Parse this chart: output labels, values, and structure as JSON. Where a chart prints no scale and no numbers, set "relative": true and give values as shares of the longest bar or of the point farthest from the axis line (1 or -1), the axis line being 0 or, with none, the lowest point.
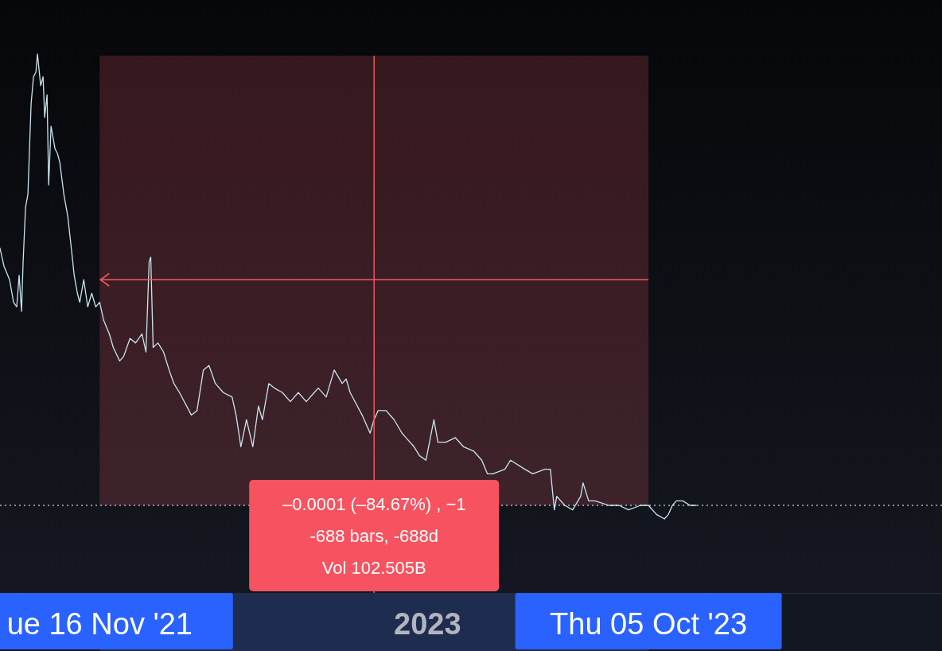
{
  "chart_data": {
    "type": "line",
    "relative": true,
    "tick_labels": "x",
    "x": [
      "2021-07-14",
      "2021-07-19",
      "2021-07-26",
      "2021-07-31",
      "2021-08-04",
      "2021-08-07",
      "2021-08-10",
      "2021-08-12",
      "2021-08-15",
      "2021-08-18",
      "2021-08-22",
      "2021-08-25",
      "2021-08-28",
      "2021-08-30",
      "2021-09-03",
      "2021-09-06",
      "2021-09-08",
      "2021-09-11",
      "2021-09-13",
      "2021-09-16",
      "2021-09-21",
      "2021-09-24",
      "2021-09-27",
      "2021-10-02",
      "2021-10-07",
      "2021-10-12",
      "2021-10-15",
      "2021-10-19",
      "2021-10-22",
      "2021-10-27",
      "2021-11-01",
      "2021-11-06",
      "2021-11-11",
      "2021-11-16",
      "2021-11-21",
      "2021-11-28",
      "2021-12-03",
      "2021-12-11",
      "2021-12-16",
      "2021-12-24",
      "2021-12-31",
      "2022-01-08",
      "2022-01-13",
      "2022-01-17",
      "2022-01-19",
      "2022-01-22",
      "2022-01-28",
      "2022-02-04",
      "2022-02-11",
      "2022-02-17",
      "2022-02-24",
      "2022-03-11",
      "2022-03-18",
      "2022-03-26",
      "2022-04-02",
      "2022-04-10",
      "2022-04-20",
      "2022-05-01",
      "2022-05-06",
      "2022-05-12",
      "2022-05-19",
      "2022-05-27",
      "2022-06-03",
      "2022-06-08",
      "2022-06-16",
      "2022-06-23",
      "2022-07-03",
      "2022-07-13",
      "2022-07-23",
      "2022-08-02",
      "2022-08-12",
      "2022-08-17",
      "2022-08-27",
      "2022-09-06",
      "2022-09-16",
      "2022-09-21",
      "2022-09-26",
      "2022-10-11",
      "2022-10-21",
      "2022-10-26",
      "2022-10-31",
      "2022-11-10",
      "2022-11-20",
      "2022-11-30",
      "2022-12-15",
      "2022-12-22",
      "2022-12-30",
      "2023-01-09",
      "2023-01-14",
      "2023-01-24",
      "2023-02-05",
      "2023-02-15",
      "2023-02-28",
      "2023-03-10",
      "2023-03-17",
      "2023-03-24",
      "2023-04-08",
      "2023-04-15",
      "2023-05-03",
      "2023-05-13",
      "2023-05-28",
      "2023-06-04",
      "2023-06-09",
      "2023-06-12",
      "2023-06-22",
      "2023-07-02",
      "2023-07-12",
      "2023-07-15",
      "2023-07-22",
      "2023-07-30",
      "2023-08-16",
      "2023-08-29",
      "2023-09-10",
      "2023-09-25",
      "2023-10-05",
      "2023-10-15",
      "2023-10-25",
      "2023-10-30",
      "2023-11-04",
      "2023-11-09",
      "2023-11-17",
      "2023-11-26",
      "2023-12-04"
    ],
    "series": [
      {
        "color": "#c8e6ee",
        "values": [
          0.57,
          0.53,
          0.5,
          0.45,
          0.44,
          0.51,
          0.43,
          0.54,
          0.66,
          0.69,
          0.89,
          0.95,
          0.96,
          1,
          0.93,
          0.95,
          0.86,
          0.91,
          0.71,
          0.84,
          0.79,
          0.78,
          0.76,
          0.69,
          0.64,
          0.56,
          0.51,
          0.47,
          0.45,
          0.5,
          0.44,
          0.47,
          0.44,
          0.45,
          0.41,
          0.38,
          0.35,
          0.32,
          0.33,
          0.37,
          0.36,
          0.38,
          0.34,
          0.54,
          0.55,
          0.35,
          0.36,
          0.34,
          0.3,
          0.27,
          0.25,
          0.2,
          0.21,
          0.3,
          0.31,
          0.27,
          0.25,
          0.24,
          0.2,
          0.13,
          0.19,
          0.13,
          0.22,
          0.19,
          0.27,
          0.26,
          0.25,
          0.23,
          0.25,
          0.23,
          0.25,
          0.26,
          0.24,
          0.3,
          0.27,
          0.28,
          0.25,
          0.2,
          0.16,
          0.19,
          0.21,
          0.21,
          0.19,
          0.16,
          0.13,
          0.11,
          0.1,
          0.19,
          0.14,
          0.14,
          0.15,
          0.13,
          0.12,
          0.1,
          0.07,
          0.07,
          0.08,
          0.1,
          0.08,
          0.07,
          0.08,
          0.08,
          -0.01,
          0.02,
          0,
          -0.01,
          0.02,
          0.05,
          0.01,
          0.01,
          0,
          0,
          -0.01,
          0,
          0,
          -0.02,
          -0.03,
          -0.02,
          0,
          0.01,
          0.01,
          0,
          0
        ]
      }
    ],
    "xlim": [
      "2021-07-14",
      "2024-10-07"
    ],
    "xticks": [
      {
        "value": "2021-11-16",
        "label": "ue 16 Nov '21"
      },
      {
        "value": "2023-01-01",
        "label": "2023"
      },
      {
        "value": "2023-10-05",
        "label": "Thu 05 Oct '23"
      }
    ],
    "bands": [
      {
        "axis": "x",
        "from": "2021-11-16",
        "to": "2023-10-05",
        "color": "#f05a64"
      }
    ],
    "ref_lines": [
      {
        "axis": "x",
        "value": "2022-10-26",
        "color": "#f0565f"
      },
      {
        "axis": "y",
        "value": 0.5,
        "color": "#f0565f"
      },
      {
        "axis": "y",
        "value": 0,
        "color": "#ffffff",
        "line_style": "dotted"
      }
    ],
    "annotations": [
      "–0.0001 (–84.67%) , −1",
      "-688 bars, -688d",
      "Vol 102.505B"
    ]
  }
}
